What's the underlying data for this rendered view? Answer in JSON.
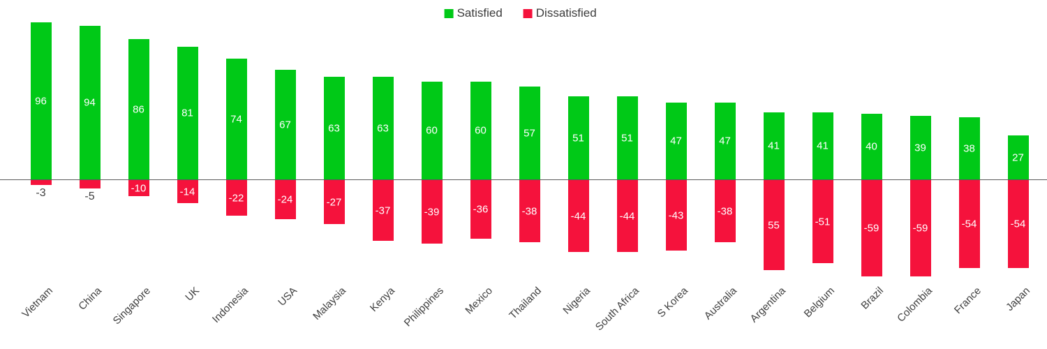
{
  "chart_data": {
    "type": "bar",
    "subtype": "diverging-column",
    "title": "",
    "categories": [
      "Vietnam",
      "China",
      "Singapore",
      "UK",
      "Indonesia",
      "USA",
      "Malaysia",
      "Kenya",
      "Philippines",
      "Mexico",
      "Thailand",
      "Nigeria",
      "South Africa",
      "S Korea",
      "Australia",
      "Argentina",
      "Belgium",
      "Brazil",
      "Colombia",
      "France",
      "Japan"
    ],
    "series": [
      {
        "name": "Satisfied",
        "color": "#00c917",
        "values": [
          96,
          94,
          86,
          81,
          74,
          67,
          63,
          63,
          60,
          60,
          57,
          51,
          51,
          47,
          47,
          41,
          41,
          40,
          39,
          38,
          27
        ],
        "display_labels": [
          "96",
          "94",
          "86",
          "81",
          "74",
          "67",
          "63",
          "63",
          "60",
          "60",
          "57",
          "51",
          "51",
          "47",
          "47",
          "41",
          "41",
          "40",
          "39",
          "38",
          "27"
        ]
      },
      {
        "name": "Dissatisfied",
        "color": "#f5123c",
        "values": [
          -3,
          -5,
          -10,
          -14,
          -22,
          -24,
          -27,
          -37,
          -39,
          -36,
          -38,
          -44,
          -44,
          -43,
          -38,
          -55,
          -51,
          -59,
          -59,
          -54,
          -54
        ],
        "display_labels": [
          "-3",
          "-5",
          "-10",
          "-14",
          "-22",
          "-24",
          "-27",
          "-37",
          "-39",
          "-36",
          "-38",
          "-44",
          "-44",
          "-43",
          "-38",
          "55",
          "-51",
          "-59",
          "-59",
          "-54",
          "-54"
        ]
      }
    ],
    "legend": {
      "position": "top-center",
      "entries": [
        "Satisfied",
        "Dissatisfied"
      ]
    },
    "axes": {
      "y_axis_visible": false,
      "gridlines": false,
      "baseline_value": 0,
      "x_labels_rotation_deg": 45
    },
    "ylim": [
      -70,
      100
    ],
    "data_label_color_inside": "#ffffff",
    "data_label_color_outside": "#404040",
    "text_color": "#404040",
    "axis_line_color": "#595959"
  }
}
